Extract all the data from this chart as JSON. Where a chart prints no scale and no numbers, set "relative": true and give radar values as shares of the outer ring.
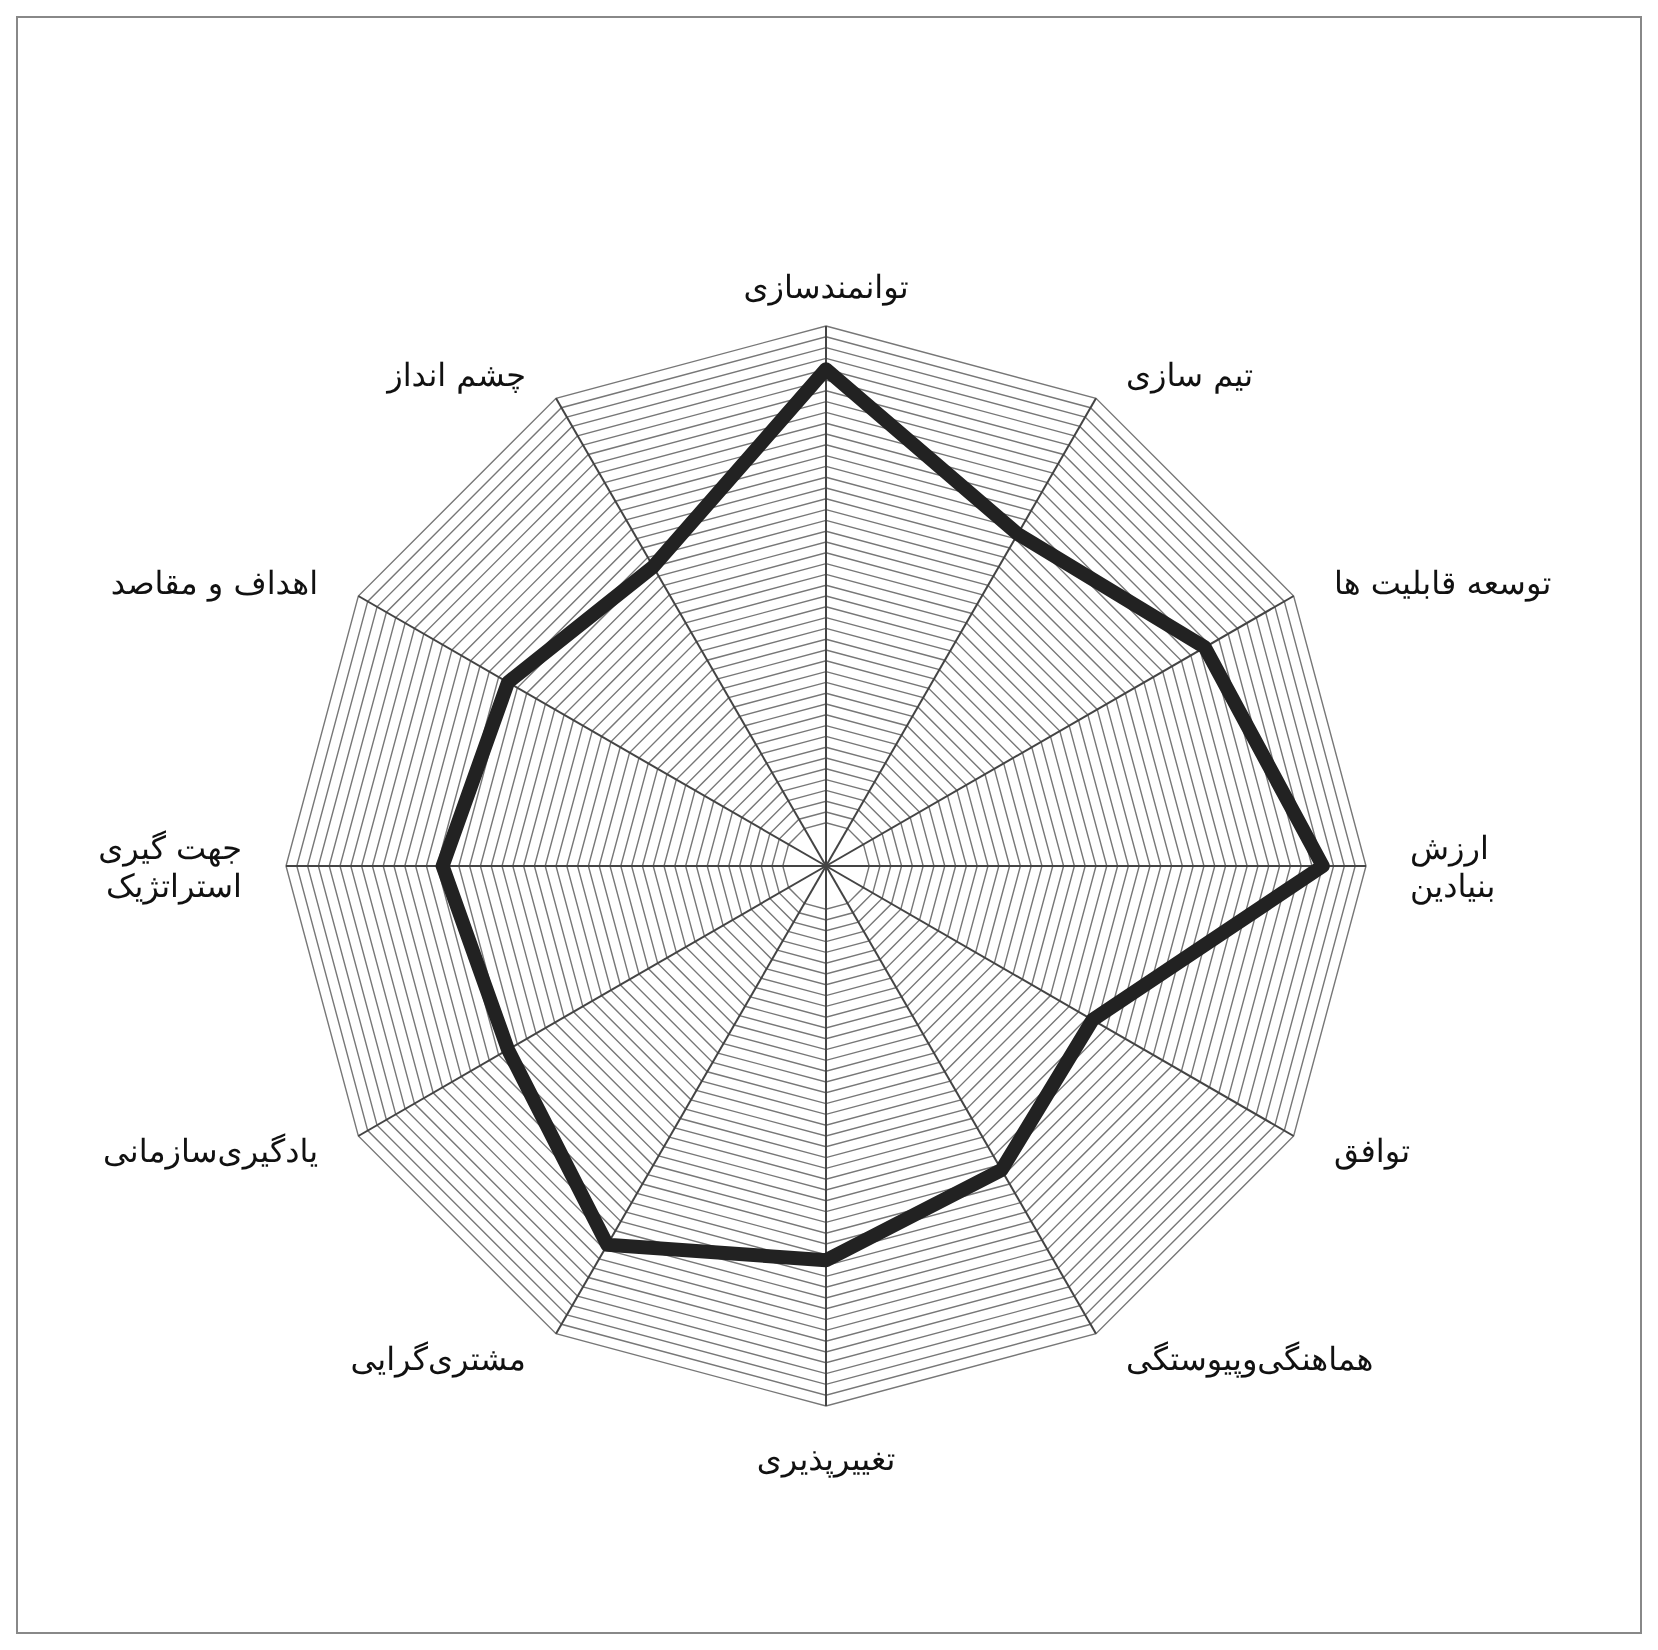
{
  "chart_data": {
    "type": "radar",
    "relative": true,
    "grid": true,
    "categories": [
      "توانمندسازی",
      "تیم سازی",
      "توسعه قابلیت ها",
      "ارزش\nبنیادین",
      "توافق",
      "هماهنگی‌وپیوستگی",
      "تغییرپذیری",
      "مشتری‌گرایی",
      "یادگیری‌سازمانی",
      "جهت گیری\nاستراتژیک",
      "اهداف و مقاصد",
      "چشم انداز"
    ],
    "series": [
      {
        "color": "#222222",
        "values": [
          0.92,
          0.71,
          0.81,
          0.92,
          0.57,
          0.65,
          0.73,
          0.81,
          0.68,
          0.71,
          0.68,
          0.64
        ]
      }
    ]
  }
}
